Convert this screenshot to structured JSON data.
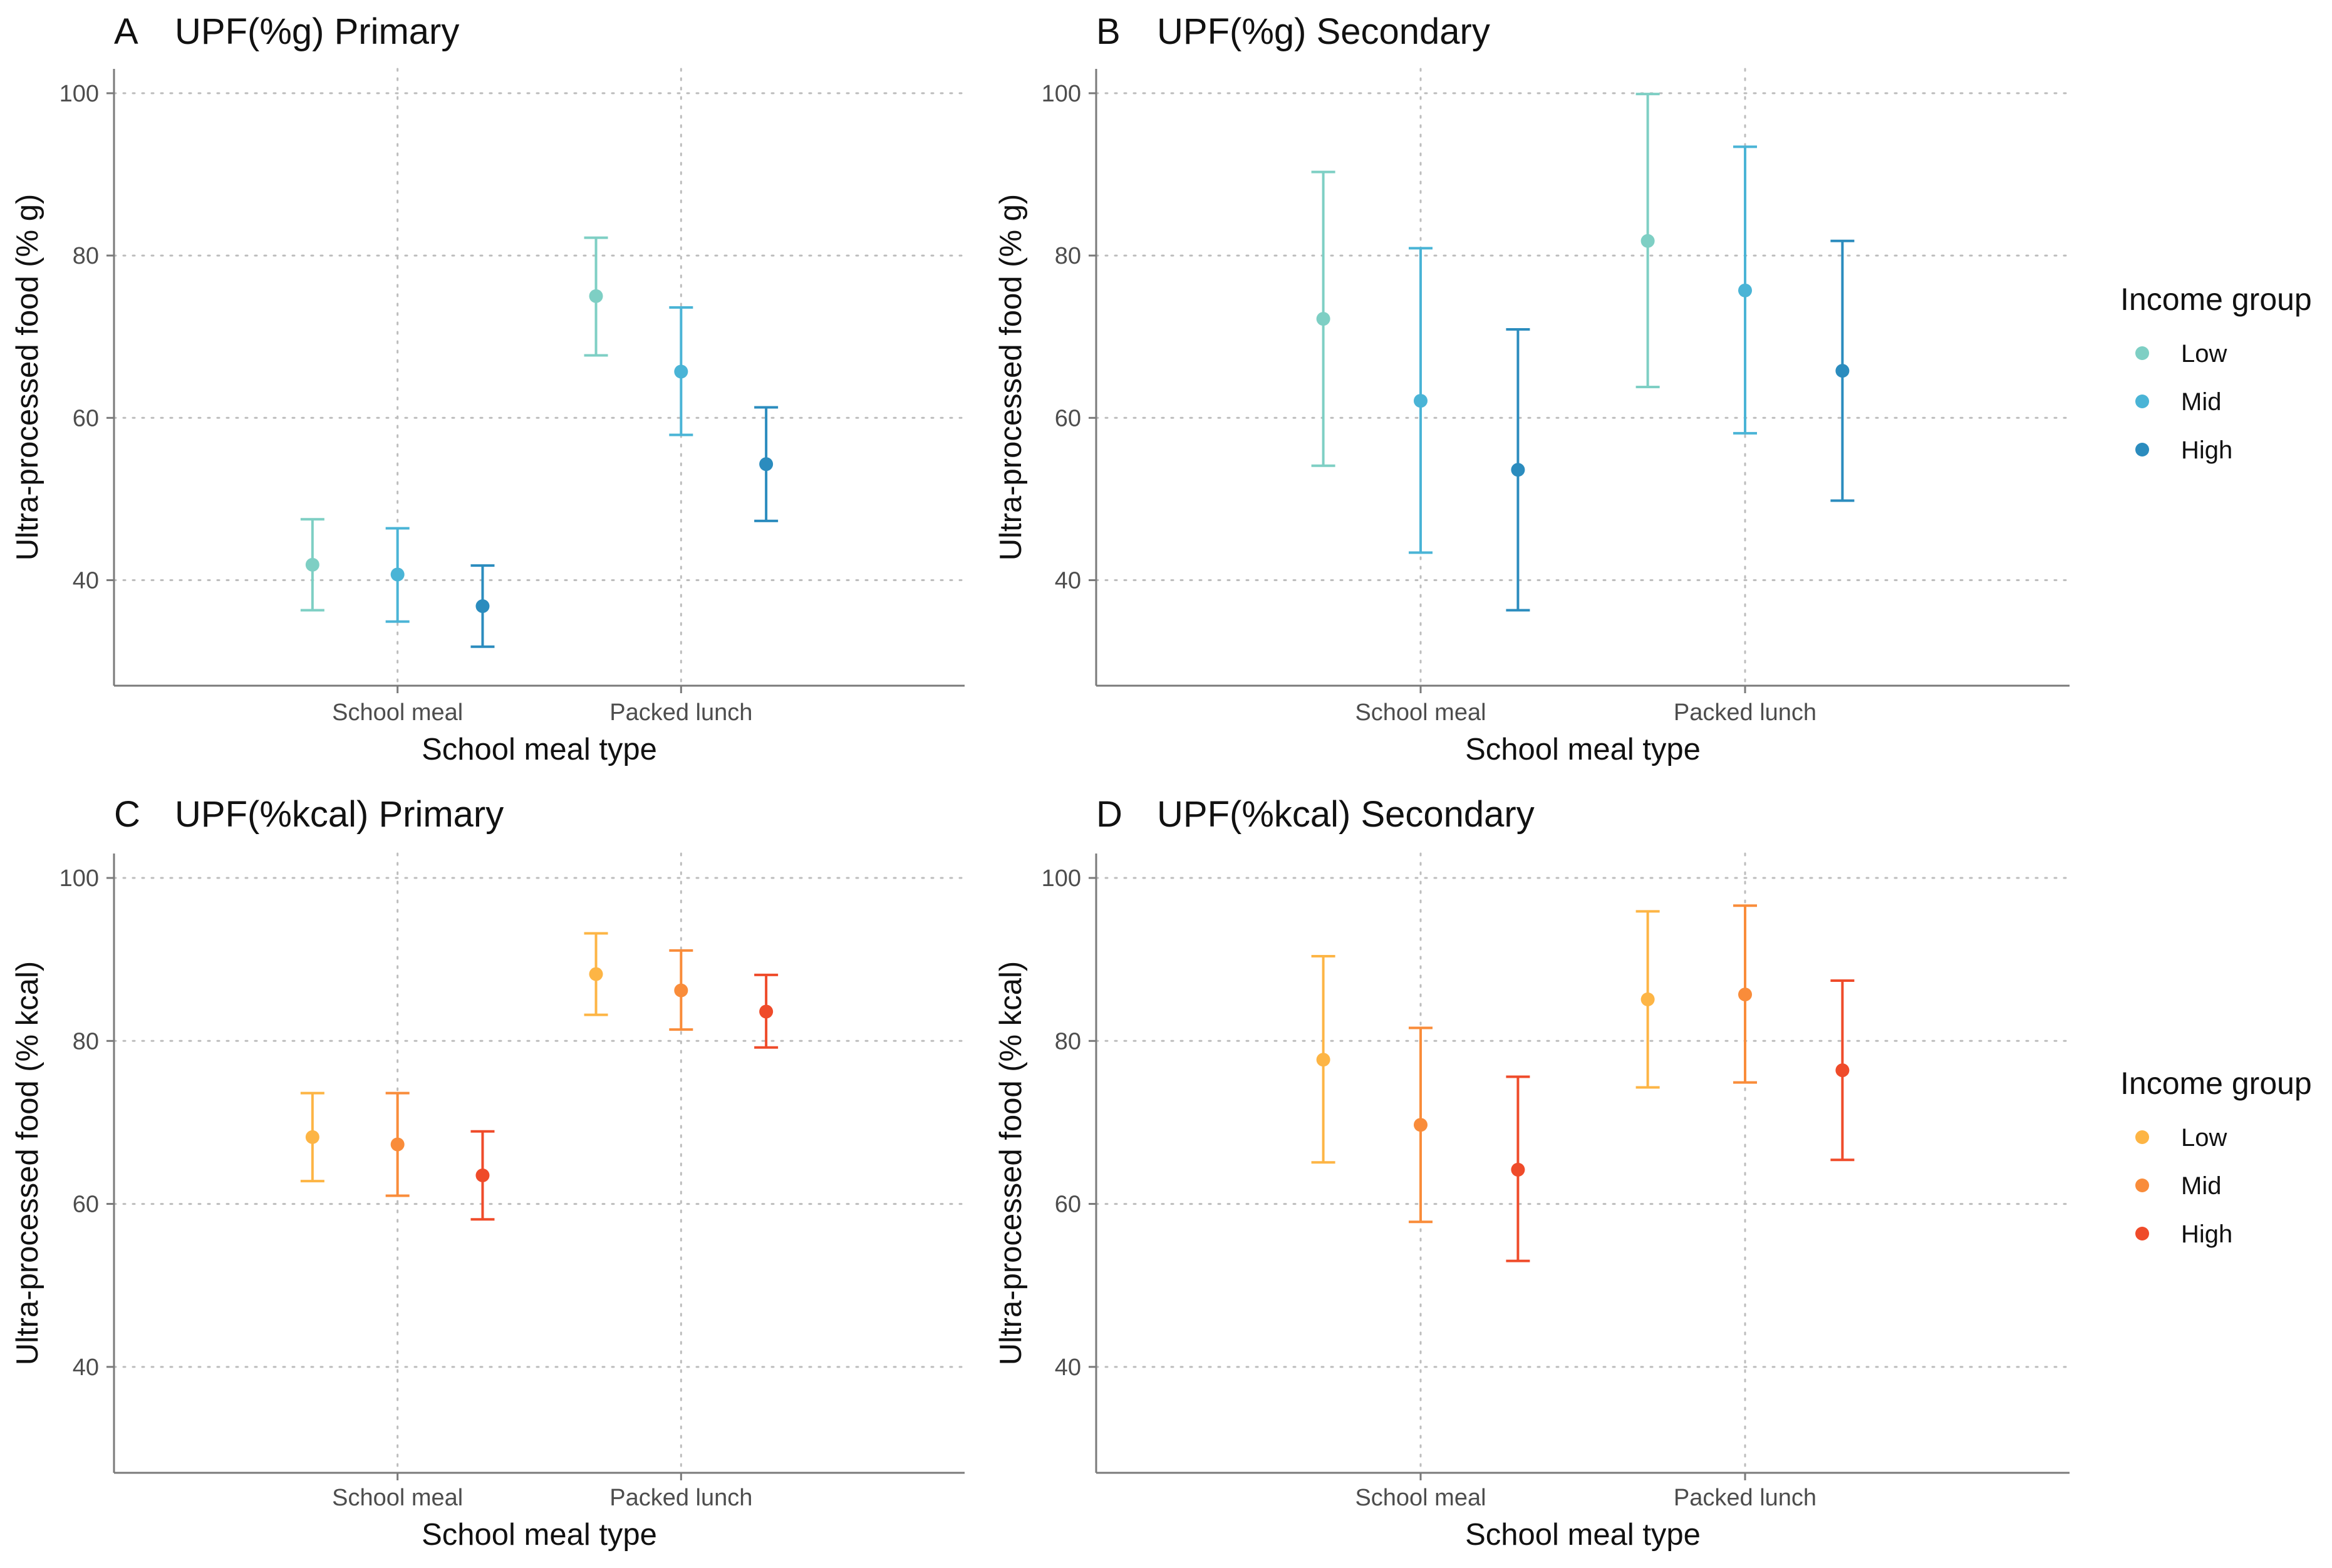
{
  "legend_sets": {
    "blue": {
      "title": "Income group",
      "items": [
        {
          "label": "Low",
          "color": "#7ecfc4"
        },
        {
          "label": "Mid",
          "color": "#4ab4d6"
        },
        {
          "label": "High",
          "color": "#2b8cbe"
        }
      ]
    },
    "orange": {
      "title": "Income group",
      "items": [
        {
          "label": "Low",
          "color": "#fdb545"
        },
        {
          "label": "Mid",
          "color": "#f98c3a"
        },
        {
          "label": "High",
          "color": "#ef4b2a"
        }
      ]
    }
  },
  "chart_data": [
    {
      "type": "scatter",
      "error_bars": true,
      "panel": "A",
      "title": "UPF(%g) Primary",
      "xlabel": "School meal type",
      "ylabel": "Ultra-processed food (% g)",
      "ylim": [
        27,
        103
      ],
      "yticks": [
        40,
        60,
        80,
        100
      ],
      "categories": [
        "School meal",
        "Packed lunch"
      ],
      "palette": "blue",
      "series": [
        {
          "name": "Low",
          "points": [
            {
              "y": 41.9,
              "low": 36.3,
              "high": 47.5
            },
            {
              "y": 75.0,
              "low": 67.7,
              "high": 82.2
            }
          ]
        },
        {
          "name": "Mid",
          "points": [
            {
              "y": 40.7,
              "low": 34.9,
              "high": 46.4
            },
            {
              "y": 65.7,
              "low": 57.9,
              "high": 73.6
            }
          ]
        },
        {
          "name": "High",
          "points": [
            {
              "y": 36.8,
              "low": 31.8,
              "high": 41.8
            },
            {
              "y": 54.3,
              "low": 47.3,
              "high": 61.3
            }
          ]
        }
      ]
    },
    {
      "type": "scatter",
      "error_bars": true,
      "panel": "B",
      "title": "UPF(%g) Secondary",
      "xlabel": "School meal type",
      "ylabel": "Ultra-processed food (% g)",
      "ylim": [
        27,
        103
      ],
      "yticks": [
        40,
        60,
        80,
        100
      ],
      "categories": [
        "School meal",
        "Packed lunch"
      ],
      "palette": "blue",
      "series": [
        {
          "name": "Low",
          "points": [
            {
              "y": 72.2,
              "low": 54.1,
              "high": 90.3
            },
            {
              "y": 81.8,
              "low": 63.8,
              "high": 99.9
            }
          ]
        },
        {
          "name": "Mid",
          "points": [
            {
              "y": 62.1,
              "low": 43.4,
              "high": 80.9
            },
            {
              "y": 75.7,
              "low": 58.1,
              "high": 93.4
            }
          ]
        },
        {
          "name": "High",
          "points": [
            {
              "y": 53.6,
              "low": 36.3,
              "high": 70.9
            },
            {
              "y": 65.8,
              "low": 49.8,
              "high": 81.8
            }
          ]
        }
      ]
    },
    {
      "type": "scatter",
      "error_bars": true,
      "panel": "C",
      "title": "UPF(%kcal) Primary",
      "xlabel": "School meal type",
      "ylabel": "Ultra-processed food (% kcal)",
      "ylim": [
        27,
        103
      ],
      "yticks": [
        40,
        60,
        80,
        100
      ],
      "categories": [
        "School meal",
        "Packed lunch"
      ],
      "palette": "orange",
      "series": [
        {
          "name": "Low",
          "points": [
            {
              "y": 68.2,
              "low": 62.8,
              "high": 73.6
            },
            {
              "y": 88.2,
              "low": 83.2,
              "high": 93.2
            }
          ]
        },
        {
          "name": "Mid",
          "points": [
            {
              "y": 67.3,
              "low": 61.0,
              "high": 73.6
            },
            {
              "y": 86.2,
              "low": 81.4,
              "high": 91.1
            }
          ]
        },
        {
          "name": "High",
          "points": [
            {
              "y": 63.5,
              "low": 58.1,
              "high": 68.9
            },
            {
              "y": 83.6,
              "low": 79.2,
              "high": 88.1
            }
          ]
        }
      ]
    },
    {
      "type": "scatter",
      "error_bars": true,
      "panel": "D",
      "title": "UPF(%kcal) Secondary",
      "xlabel": "School meal type",
      "ylabel": "Ultra-processed food (% kcal)",
      "ylim": [
        27,
        103
      ],
      "yticks": [
        40,
        60,
        80,
        100
      ],
      "categories": [
        "School meal",
        "Packed lunch"
      ],
      "palette": "orange",
      "series": [
        {
          "name": "Low",
          "points": [
            {
              "y": 77.7,
              "low": 65.1,
              "high": 90.4
            },
            {
              "y": 85.1,
              "low": 74.3,
              "high": 95.9
            }
          ]
        },
        {
          "name": "Mid",
          "points": [
            {
              "y": 69.7,
              "low": 57.8,
              "high": 81.6
            },
            {
              "y": 85.7,
              "low": 74.9,
              "high": 96.6
            }
          ]
        },
        {
          "name": "High",
          "points": [
            {
              "y": 64.2,
              "low": 53.0,
              "high": 75.6
            },
            {
              "y": 76.4,
              "low": 65.4,
              "high": 87.4
            }
          ]
        }
      ]
    }
  ]
}
